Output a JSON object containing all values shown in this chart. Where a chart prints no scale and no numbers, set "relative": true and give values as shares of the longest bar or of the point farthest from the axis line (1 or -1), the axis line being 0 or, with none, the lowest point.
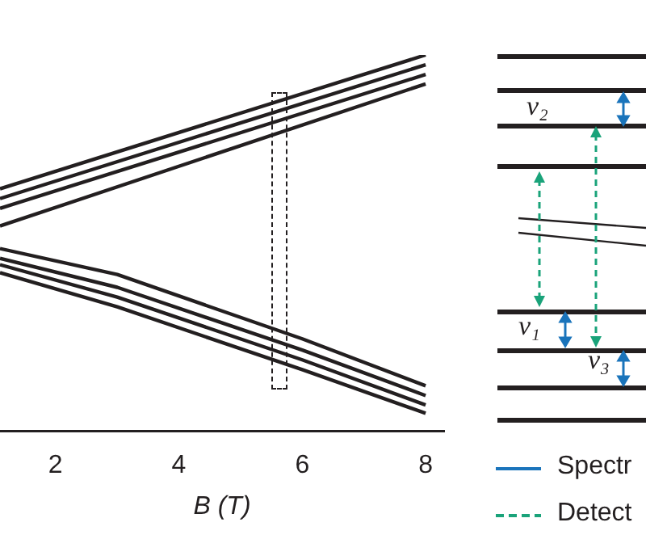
{
  "chart_data": {
    "type": "line",
    "xlabel": "B (T)",
    "relative": true,
    "xlim": [
      1.1,
      8.3
    ],
    "xticks": [
      2,
      4,
      6,
      8
    ],
    "tick_labels": "x",
    "marker": "none",
    "line_style": "solid",
    "series": [
      {
        "color": "#231f20",
        "x": [
          1.1,
          8
        ],
        "values": [
          0.644,
          1
        ]
      },
      {
        "color": "#231f20",
        "x": [
          1.1,
          8
        ],
        "values": [
          0.618,
          0.974
        ]
      },
      {
        "color": "#231f20",
        "x": [
          1.1,
          8
        ],
        "values": [
          0.592,
          0.948
        ]
      },
      {
        "color": "#231f20",
        "x": [
          1.1,
          8
        ],
        "values": [
          0.545,
          0.923
        ]
      },
      {
        "color": "#231f20",
        "x": [
          1.1,
          3,
          6,
          8
        ],
        "values": [
          0.485,
          0.416,
          0.245,
          0.12
        ]
      },
      {
        "color": "#231f20",
        "x": [
          1.1,
          3,
          6,
          8
        ],
        "values": [
          0.459,
          0.382,
          0.215,
          0.094
        ]
      },
      {
        "color": "#231f20",
        "x": [
          1.1,
          3,
          6,
          8
        ],
        "values": [
          0.442,
          0.356,
          0.189,
          0.069
        ]
      },
      {
        "color": "#231f20",
        "x": [
          1.1,
          3,
          6,
          8
        ],
        "values": [
          0.421,
          0.33,
          0.163,
          0.047
        ]
      }
    ],
    "annotations": [
      "ν₂",
      "ν₁",
      "ν₃",
      "Spectr",
      "Detect"
    ]
  }
}
